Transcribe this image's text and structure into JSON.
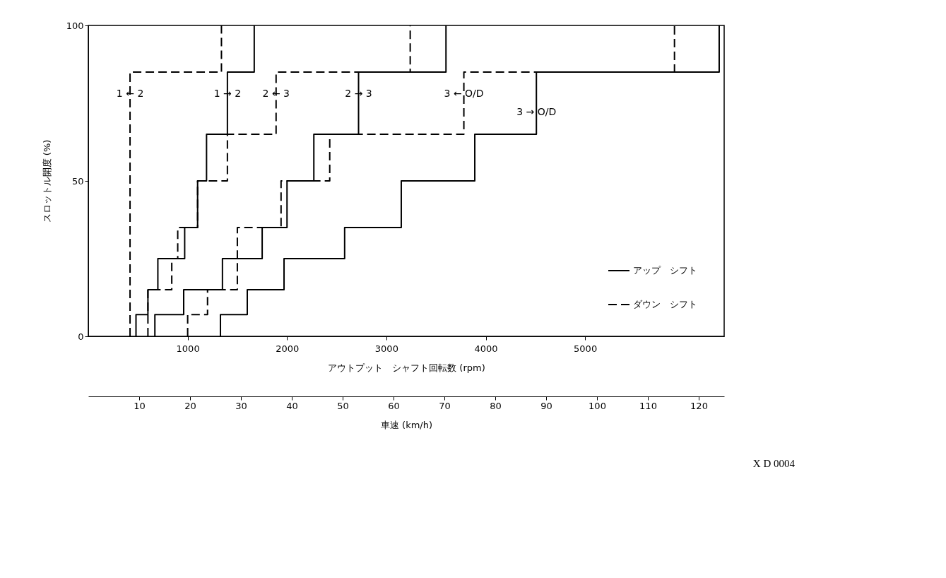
{
  "chart_data": {
    "type": "line",
    "xlabel": "アウトプット　シャフト回転数 (rpm)",
    "ylabel": "スロットル開度 (%)",
    "x2label": "車速 (km/h)",
    "xlim": [
      0,
      6400
    ],
    "xticks": [
      1000,
      2000,
      3000,
      4000,
      5000
    ],
    "ylim": [
      0,
      100
    ],
    "yticks": [
      0,
      50,
      100
    ],
    "x2lim": [
      0,
      125
    ],
    "x2ticks": [
      10,
      20,
      30,
      40,
      50,
      60,
      70,
      80,
      90,
      100,
      110,
      120
    ],
    "grid": false,
    "legend": "bottom right",
    "marker": "none",
    "series": [
      {
        "name": "アップ　シフト",
        "color": "#000000",
        "line_style": "solid",
        "x": [
          480,
          480,
          600,
          600,
          700,
          700,
          970,
          970,
          1100,
          1100,
          1190,
          1190,
          1400,
          1400,
          1670,
          1670,
          null,
          670,
          670,
          960,
          960,
          1350,
          1350,
          1750,
          1750,
          2000,
          2000,
          2270,
          2270,
          2720,
          2720,
          3600,
          3600,
          null,
          1330,
          1330,
          1600,
          1600,
          1970,
          1970,
          2580,
          2580,
          3150,
          3150,
          3890,
          3890,
          4510,
          4510,
          6350,
          6350
        ],
        "values": [
          0,
          7,
          7,
          15,
          15,
          25,
          25,
          35,
          35,
          50,
          50,
          65,
          65,
          85,
          85,
          100,
          null,
          0,
          7,
          7,
          15,
          15,
          25,
          25,
          35,
          35,
          50,
          50,
          65,
          65,
          85,
          85,
          100,
          null,
          0,
          7,
          7,
          15,
          15,
          25,
          25,
          35,
          35,
          50,
          50,
          65,
          65,
          85,
          85,
          100
        ]
      },
      {
        "name": "ダウン　シフト",
        "color": "#000000",
        "line_style": "dashed",
        "x": [
          420,
          420,
          1340,
          1340,
          null,
          600,
          600,
          840,
          840,
          900,
          900,
          1100,
          1100,
          1400,
          1400,
          1890,
          1890,
          3240,
          3240,
          null,
          1000,
          1000,
          1200,
          1200,
          1500,
          1500,
          1940,
          1940,
          2430,
          2430,
          3780,
          3780,
          5900,
          5900
        ],
        "values": [
          0,
          85,
          85,
          100,
          null,
          0,
          15,
          15,
          25,
          25,
          35,
          35,
          50,
          50,
          65,
          65,
          85,
          85,
          100,
          null,
          0,
          7,
          7,
          15,
          15,
          35,
          35,
          50,
          50,
          65,
          65,
          85,
          85,
          100
        ]
      }
    ],
    "annotations": [
      {
        "text": "1 ← 2",
        "x": 420,
        "y": 78
      },
      {
        "text": "1 → 2",
        "x": 1400,
        "y": 78
      },
      {
        "text": "2 ← 3",
        "x": 1890,
        "y": 78
      },
      {
        "text": "2 → 3",
        "x": 2720,
        "y": 78
      },
      {
        "text": "3 ← O/D",
        "x": 3780,
        "y": 78
      },
      {
        "text": "3 → O/D",
        "x": 4510,
        "y": 72
      },
      "X D 0004"
    ]
  }
}
